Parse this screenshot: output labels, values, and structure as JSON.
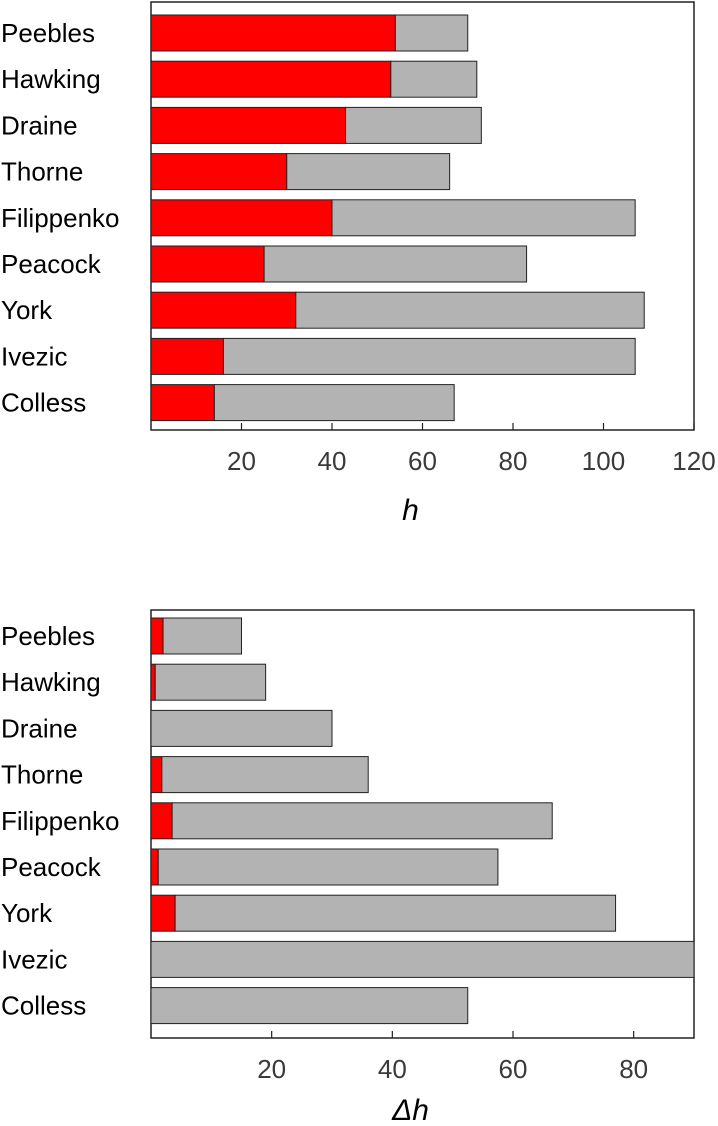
{
  "chart_data": [
    {
      "type": "bar",
      "orientation": "horizontal",
      "stacked": true,
      "categories": [
        "Peebles",
        "Hawking",
        "Draine",
        "Thorne",
        "Filippenko",
        "Peacock",
        "York",
        "Ivezic",
        "Colless"
      ],
      "series": [
        {
          "values": [
            54,
            53,
            43,
            30,
            40,
            25,
            32,
            16,
            14
          ],
          "color": "#ff0000"
        },
        {
          "values": [
            16,
            19,
            30,
            36,
            67,
            58,
            77,
            91,
            53
          ],
          "color": "#b3b3b3"
        }
      ],
      "totals": [
        70,
        72,
        73,
        66,
        107,
        83,
        109,
        107,
        67
      ],
      "xlabel": "h",
      "xlim": [
        0,
        120
      ],
      "xticks": [
        20,
        40,
        60,
        80,
        100,
        120
      ],
      "grid": false
    },
    {
      "type": "bar",
      "orientation": "horizontal",
      "stacked": true,
      "categories": [
        "Peebles",
        "Hawking",
        "Draine",
        "Thorne",
        "Filippenko",
        "Peacock",
        "York",
        "Ivezic",
        "Colless"
      ],
      "series": [
        {
          "values": [
            2,
            0.7,
            0,
            1.8,
            3.5,
            1.2,
            4,
            0,
            0
          ],
          "color": "#ff0000"
        },
        {
          "values": [
            13,
            18.3,
            30,
            34.2,
            63,
            56.3,
            73,
            90,
            52.5
          ],
          "color": "#b3b3b3"
        }
      ],
      "totals": [
        15,
        19,
        30,
        36,
        66.5,
        57.5,
        77,
        90,
        52.5
      ],
      "xlabel": "Δh",
      "xlim": [
        0,
        90
      ],
      "xticks": [
        20,
        40,
        60,
        80
      ],
      "grid": false
    }
  ]
}
